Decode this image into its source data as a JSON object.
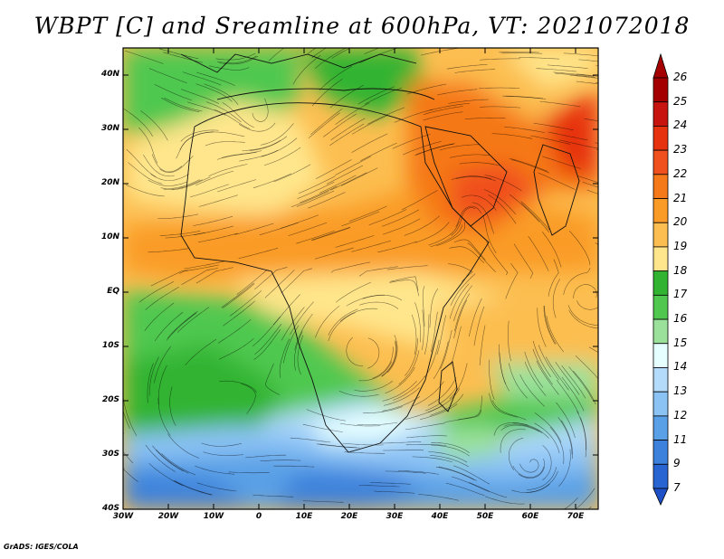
{
  "title": "WBPT [C] and Sreamline at 600hPa, VT: 2021072018",
  "credit": "GrADS: IGES/COLA",
  "map": {
    "lat_labels": [
      "40N",
      "30N",
      "20N",
      "10N",
      "EQ",
      "10S",
      "20S",
      "30S",
      "40S"
    ],
    "lat_values": [
      40,
      30,
      20,
      10,
      0,
      -10,
      -20,
      -30,
      -40
    ],
    "lon_labels": [
      "30W",
      "20W",
      "10W",
      "0",
      "10E",
      "20E",
      "30E",
      "40E",
      "50E",
      "60E",
      "70E"
    ],
    "lon_values": [
      -30,
      -20,
      -10,
      0,
      10,
      20,
      30,
      40,
      50,
      60,
      70
    ],
    "lon_range": [
      -30,
      75
    ],
    "lat_range": [
      -40,
      45
    ]
  },
  "colorbar": {
    "labels": [
      "26",
      "25",
      "24",
      "23",
      "22",
      "21",
      "20",
      "19",
      "18",
      "17",
      "16",
      "15",
      "14",
      "13",
      "12",
      "11",
      "9",
      "7"
    ],
    "colors": [
      "#a50000",
      "#c8140f",
      "#e6320f",
      "#f0501e",
      "#f57819",
      "#fa9b28",
      "#fcbe50",
      "#ffe68c",
      "#32b432",
      "#50c850",
      "#9be19b",
      "#e6ffff",
      "#b4dcfa",
      "#8cc3f5",
      "#5aa0e6",
      "#3c82dc",
      "#2864d2"
    ]
  }
}
